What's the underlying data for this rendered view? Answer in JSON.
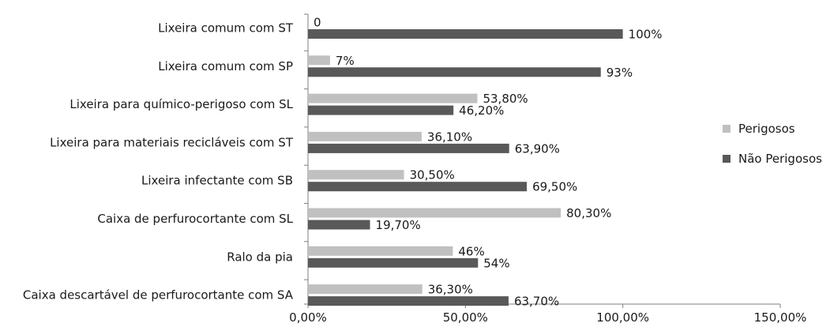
{
  "chart_data": {
    "type": "bar",
    "orientation": "horizontal",
    "categories": [
      "Lixeira comum com ST",
      "Lixeira comum com SP",
      "Lixeira para químico-perigoso com SL",
      "Lixeira para materiais recicláveis com ST",
      "Lixeira infectante com SB",
      "Caixa de perfurocortante com SL",
      "Ralo da pia",
      "Caixa descartável de perfurocortante com SA"
    ],
    "series": [
      {
        "name": "Perigosos",
        "color": "#c0c0c0",
        "values": [
          0,
          7,
          53.8,
          36.1,
          30.5,
          80.3,
          46,
          36.3
        ],
        "labels": [
          "0",
          "7%",
          "53,80%",
          "36,10%",
          "30,50%",
          "80,30%",
          "46%",
          "36,30%"
        ]
      },
      {
        "name": "Não Perigosos",
        "color": "#595959",
        "values": [
          100,
          93,
          46.2,
          63.9,
          69.5,
          19.7,
          54,
          63.7
        ],
        "labels": [
          "100%",
          "93%",
          "46,20%",
          "63,90%",
          "69,50%",
          "19,70%",
          "54%",
          "63,70%"
        ]
      }
    ],
    "xlim": [
      0,
      150
    ],
    "x_ticks": [
      0,
      50,
      100,
      150
    ],
    "x_tick_labels": [
      "0,00%",
      "50,00%",
      "100,00%",
      "150,00%"
    ],
    "title": "",
    "xlabel": "",
    "ylabel": "",
    "grid": false,
    "legend_position": "right"
  }
}
